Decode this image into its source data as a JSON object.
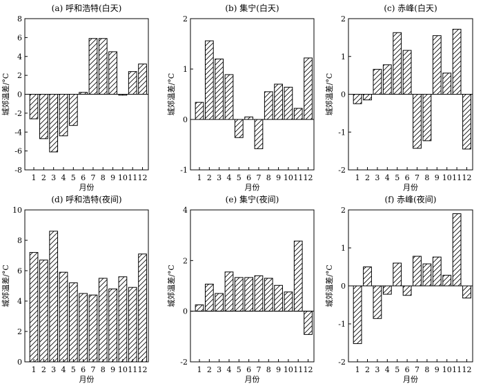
{
  "figure": {
    "hatch_color": "#000000",
    "background": "#ffffff"
  },
  "chart_data": [
    {
      "type": "bar",
      "title": "(a) 呼和浩特(白天)",
      "xlabel": "月份",
      "ylabel": "城郊温差/°C",
      "categories": [
        "1",
        "2",
        "3",
        "4",
        "5",
        "6",
        "7",
        "8",
        "9",
        "10",
        "11",
        "12"
      ],
      "values": [
        -2.6,
        -4.7,
        -6.1,
        -4.4,
        -3.3,
        0.2,
        5.9,
        5.9,
        4.5,
        -0.1,
        2.4,
        3.2
      ],
      "ylim": [
        -8,
        8
      ],
      "yticks": [
        "-8",
        "-6",
        "-4",
        "-2",
        "0",
        "2",
        "4",
        "6",
        "8"
      ]
    },
    {
      "type": "bar",
      "title": "(b) 集宁(白天)",
      "xlabel": "月份",
      "ylabel": "城郊温差/°C",
      "categories": [
        "1",
        "2",
        "3",
        "4",
        "5",
        "6",
        "7",
        "8",
        "9",
        "10",
        "11",
        "12"
      ],
      "values": [
        0.34,
        1.56,
        1.2,
        0.89,
        -0.36,
        0.05,
        -0.58,
        0.55,
        0.7,
        0.64,
        0.22,
        1.22
      ],
      "ylim": [
        -1,
        2
      ],
      "yticks": [
        "-1",
        "0",
        "1",
        "2"
      ]
    },
    {
      "type": "bar",
      "title": "(c) 赤峰(白天)",
      "xlabel": "月份",
      "ylabel": "城郊温差/°C",
      "categories": [
        "1",
        "2",
        "3",
        "4",
        "5",
        "6",
        "7",
        "8",
        "9",
        "10",
        "11",
        "12"
      ],
      "values": [
        -0.25,
        -0.15,
        0.66,
        0.78,
        1.63,
        1.16,
        -1.43,
        -1.23,
        1.55,
        0.56,
        1.72,
        -1.45
      ],
      "ylim": [
        -2,
        2
      ],
      "yticks": [
        "-2",
        "-1",
        "0",
        "1",
        "2"
      ]
    },
    {
      "type": "bar",
      "title": "(d) 呼和浩特(夜间)",
      "xlabel": "月份",
      "ylabel": "城郊温差/°C",
      "categories": [
        "1",
        "2",
        "3",
        "4",
        "5",
        "6",
        "7",
        "8",
        "9",
        "10",
        "11",
        "12"
      ],
      "values": [
        7.2,
        6.7,
        8.6,
        5.9,
        5.2,
        4.5,
        4.4,
        5.5,
        4.8,
        5.6,
        4.9,
        7.1
      ],
      "ylim": [
        0,
        10
      ],
      "yticks": [
        "0",
        "2",
        "4",
        "6",
        "8",
        "10"
      ]
    },
    {
      "type": "bar",
      "title": "(e) 集宁(夜间)",
      "xlabel": "月份",
      "ylabel": "城郊温差/°C",
      "categories": [
        "1",
        "2",
        "3",
        "4",
        "5",
        "6",
        "7",
        "8",
        "9",
        "10",
        "11",
        "12"
      ],
      "values": [
        0.25,
        1.07,
        0.7,
        1.55,
        1.33,
        1.33,
        1.4,
        1.3,
        1.02,
        0.76,
        2.77,
        -0.92
      ],
      "ylim": [
        -2,
        4
      ],
      "yticks": [
        "-2",
        "0",
        "2",
        "4"
      ]
    },
    {
      "type": "bar",
      "title": "(f) 赤峰(夜间)",
      "xlabel": "月份",
      "ylabel": "城郊温差/°C",
      "categories": [
        "1",
        "2",
        "3",
        "4",
        "5",
        "6",
        "7",
        "8",
        "9",
        "10",
        "11",
        "12"
      ],
      "values": [
        -1.52,
        0.5,
        -0.86,
        -0.22,
        0.6,
        -0.25,
        0.78,
        0.58,
        0.76,
        0.28,
        1.9,
        -0.32
      ],
      "ylim": [
        -2,
        2
      ],
      "yticks": [
        "-2",
        "-1",
        "0",
        "1",
        "2"
      ]
    }
  ]
}
